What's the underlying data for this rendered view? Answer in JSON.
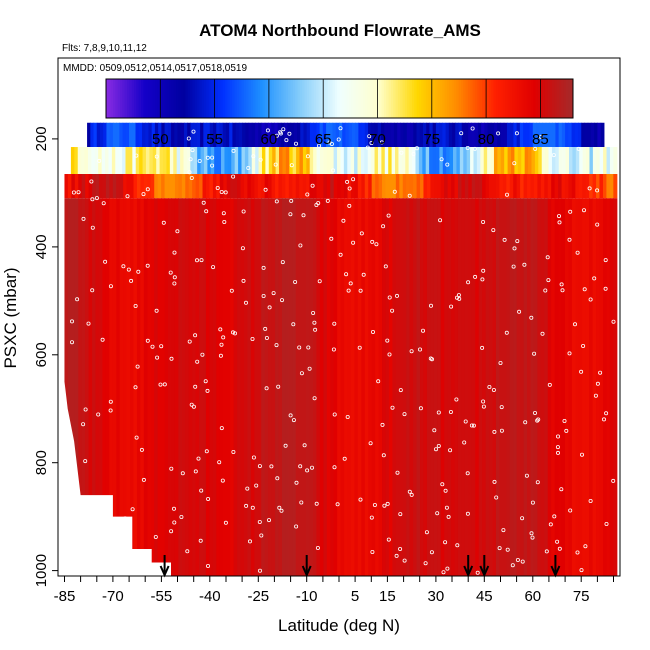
{
  "chart_data": {
    "type": "heatmap",
    "title": "ATOM4 Northbound Flowrate_AMS",
    "flights_label": "Flts: 7,8,9,10,11,12",
    "dates_label": "MMDD: 0509,0512,0514,0517,0518,0519",
    "xlabel": "Latitude (deg N)",
    "ylabel": "PSXC (mbar)",
    "xlim": [
      -87,
      87
    ],
    "ylim": [
      1010,
      50
    ],
    "x_ticks": [
      -85,
      -70,
      -55,
      -40,
      -25,
      -10,
      5,
      15,
      30,
      45,
      60,
      75
    ],
    "y_ticks": [
      200,
      400,
      600,
      800,
      1000
    ],
    "colorbar": {
      "min": 45,
      "max": 88,
      "ticks": [
        50,
        55,
        60,
        65,
        70,
        75,
        80,
        85
      ],
      "colors": [
        "#8a2be2",
        "#1400c8",
        "#0000a0",
        "#0030ff",
        "#1e90ff",
        "#87cefa",
        "#f0ffff",
        "#ffffcc",
        "#ffd700",
        "#ff8c00",
        "#ff2000",
        "#e00000",
        "#a52a2a"
      ]
    },
    "layers": [
      {
        "p_top": 170,
        "p_bot": 215,
        "lat_start": -78,
        "lat_end": 82,
        "value_range": [
          49,
          58
        ]
      },
      {
        "p_top": 215,
        "p_bot": 265,
        "lat_start": -83,
        "lat_end": 86,
        "value_range": [
          58,
          78
        ]
      },
      {
        "p_top": 265,
        "p_bot": 310,
        "lat_start": -85,
        "lat_end": 86,
        "value_range": [
          77,
          87
        ]
      },
      {
        "p_top": 310,
        "p_bot": 1010,
        "lat_start": -85,
        "lat_end": 86,
        "value_range": [
          83,
          87
        ]
      }
    ],
    "arrows_lat": [
      -54,
      -10,
      40,
      45,
      67
    ]
  }
}
